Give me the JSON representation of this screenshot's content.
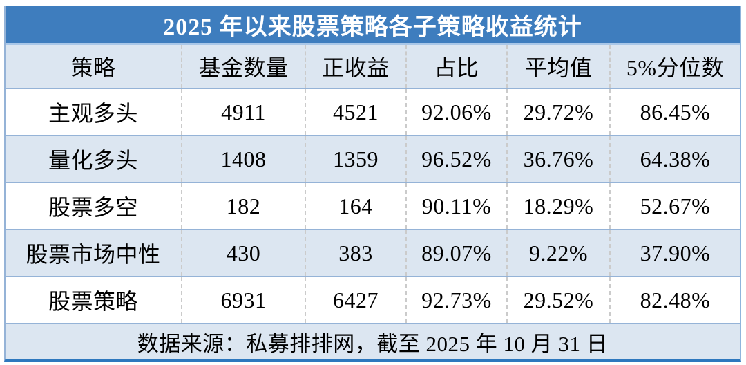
{
  "title": "2025 年以来股票策略各子策略收益统计",
  "table": {
    "headers": [
      "策略",
      "基金数量",
      "正收益",
      "占比",
      "平均值",
      "5%分位数"
    ],
    "rows": [
      {
        "cells": [
          "主观多头",
          "4911",
          "4521",
          "92.06%",
          "29.72%",
          "86.45%"
        ]
      },
      {
        "cells": [
          "量化多头",
          "1408",
          "1359",
          "96.52%",
          "36.76%",
          "64.38%"
        ]
      },
      {
        "cells": [
          "股票多空",
          "182",
          "164",
          "90.11%",
          "18.29%",
          "52.67%"
        ]
      },
      {
        "cells": [
          "股票市场中性",
          "430",
          "383",
          "89.07%",
          "9.22%",
          "37.90%"
        ]
      },
      {
        "cells": [
          "股票策略",
          "6931",
          "6427",
          "92.73%",
          "29.52%",
          "82.48%"
        ]
      }
    ],
    "footer": "数据来源：私募排排网，截至 2025 年 10 月 31 日"
  },
  "colors": {
    "title_bar_blue": "#3E7DBE",
    "row_alt_blue": "#DCE6F1",
    "row_separator_blue": "#95B3D7",
    "bottom_border_blue": "#2E78BE",
    "title_text": "#FFFFFF",
    "body_text": "#000000"
  },
  "chart_data": {
    "type": "table",
    "title": "2025 年以来股票策略各子策略收益统计",
    "columns": [
      "策略",
      "基金数量",
      "正收益",
      "占比",
      "平均值",
      "5%分位数"
    ],
    "rows": [
      [
        "主观多头",
        4911,
        4521,
        "92.06%",
        "29.72%",
        "86.45%"
      ],
      [
        "量化多头",
        1408,
        1359,
        "96.52%",
        "36.76%",
        "64.38%"
      ],
      [
        "股票多空",
        182,
        164,
        "90.11%",
        "18.29%",
        "52.67%"
      ],
      [
        "股票市场中性",
        430,
        383,
        "89.07%",
        "9.22%",
        "37.90%"
      ],
      [
        "股票策略",
        6931,
        6427,
        "92.73%",
        "29.52%",
        "82.48%"
      ]
    ],
    "source_note": "数据来源：私募排排网，截至 2025 年 10 月 31 日"
  }
}
